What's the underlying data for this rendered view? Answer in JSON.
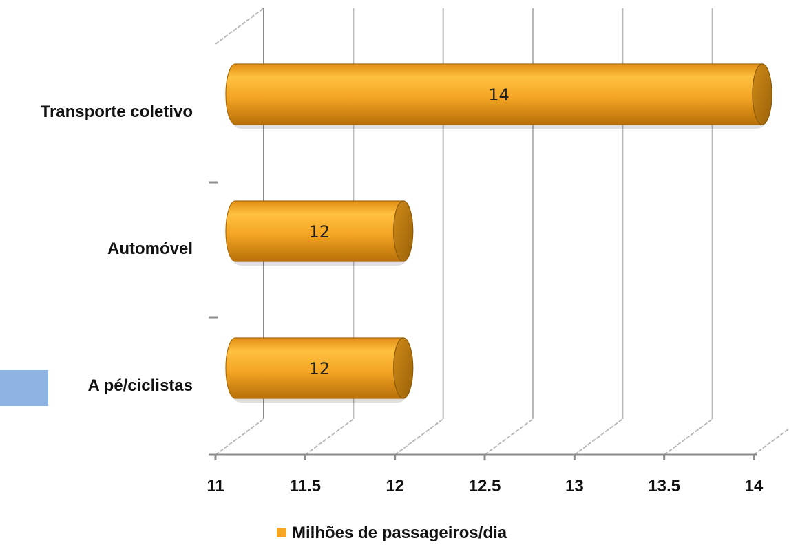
{
  "chart_data": {
    "type": "bar",
    "orientation": "horizontal",
    "style": "3d-cylinder",
    "categories": [
      "Transporte coletivo",
      "Automóvel",
      "A pé/ciclistas"
    ],
    "series": [
      {
        "name": "Milhões de passageiros/dia",
        "values": [
          14,
          12,
          12
        ]
      }
    ],
    "data_labels": [
      "14",
      "12",
      "12"
    ],
    "xlim": [
      11,
      14
    ],
    "x_ticks": [
      11,
      11.5,
      12,
      12.5,
      13,
      13.5,
      14
    ],
    "x_tick_labels": [
      "11",
      "11.5",
      "12",
      "12.5",
      "13",
      "13.5",
      "14"
    ],
    "title": "",
    "xlabel": "",
    "ylabel": "",
    "gridlines": true,
    "legend_position": "bottom",
    "colors": {
      "bar": "#F2A21C",
      "bar_end": "#C07E10",
      "grid": "#B8B8B8",
      "axis": "#8C8C8C",
      "swatch": "#F5A623",
      "side_box": "#8EB4E3"
    }
  }
}
